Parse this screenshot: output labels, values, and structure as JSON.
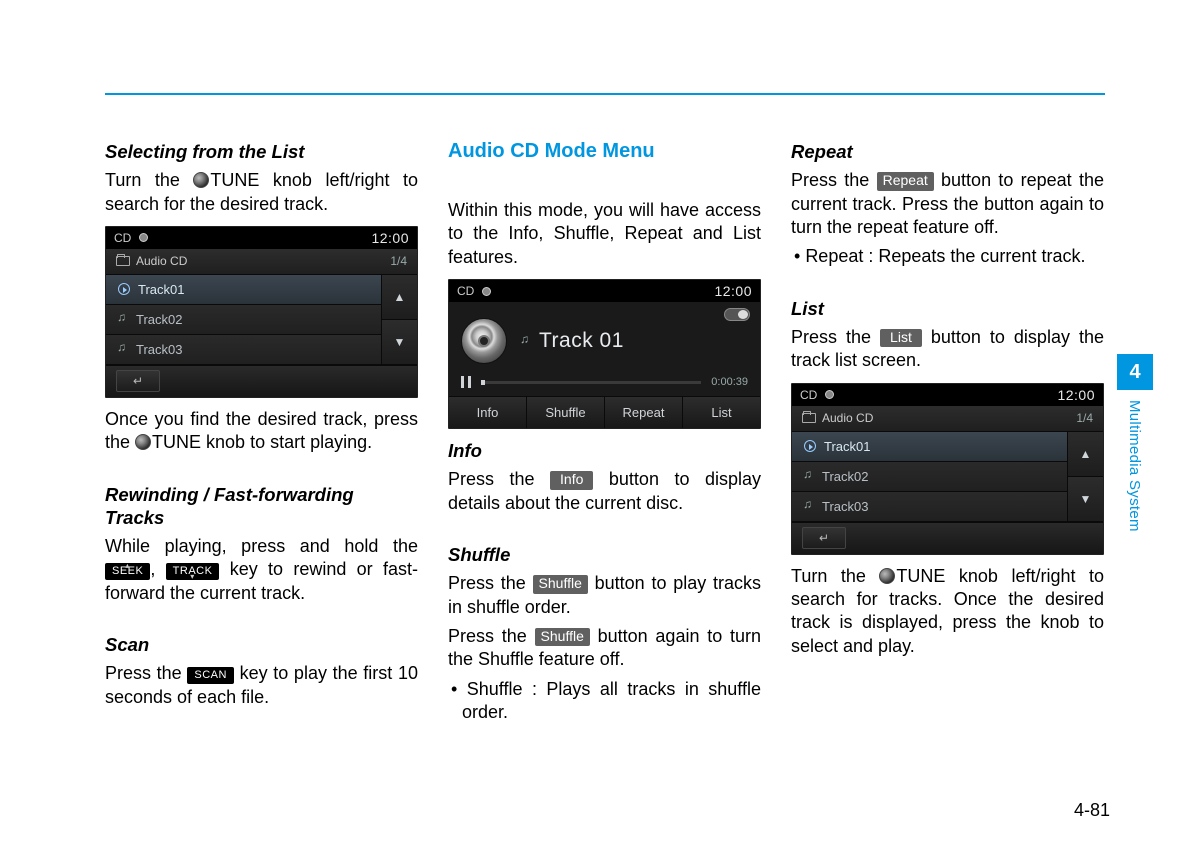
{
  "page": {
    "number": "4-81",
    "chapter_num": "4",
    "chapter_title": "Multimedia System"
  },
  "col1": {
    "h1": "Selecting from the List",
    "p1a": "Turn the ",
    "p1b": "TUNE knob left/right to search for the desired track.",
    "p2a": "Once you find the desired track, press the ",
    "p2b": "TUNE knob to start playing.",
    "h2": "Rewinding / Fast-forwarding Tracks",
    "p3a": "While playing, press and hold the ",
    "seek": "SEEK",
    "p3b": ", ",
    "track": "TRACK",
    "p3c": " key to rewind or fast-forward the current track.",
    "h3": "Scan",
    "p4a": "Press the ",
    "scan": "SCAN",
    "p4b": " key to play the first 10 seconds of each file."
  },
  "col2": {
    "hmain": "Audio CD Mode Menu",
    "p1": "Within this mode, you will have access to the Info, Shuffle, Repeat and List features.",
    "h_info": "Info",
    "p_info_a": "Press the ",
    "chip_info": "Info",
    "p_info_b": " button to display details about the current disc.",
    "h_shuffle": "Shuffle",
    "p_sh1_a": "Press the ",
    "chip_shuffle": "Shuffle",
    "p_sh1_b": " button to play tracks in shuffle order.",
    "p_sh2_a": "Press the ",
    "p_sh2_b": " button again to turn the Shuffle feature off.",
    "bullet_shuffle": "Shuffle : Plays all tracks in shuffle order."
  },
  "col3": {
    "h_repeat": "Repeat",
    "p_rp_a": "Press the ",
    "chip_repeat": "Repeat",
    "p_rp_b": " button to repeat the current track. Press the button again to turn the repeat feature off.",
    "bullet_repeat": "Repeat : Repeats the current track.",
    "h_list": "List",
    "p_ls_a": "Press the ",
    "chip_list": "List",
    "p_ls_b": " button to display the track list screen.",
    "p_end_a": "Turn the ",
    "p_end_b": "TUNE knob left/right to search for tracks. Once the desired track is displayed, press the knob to select and play."
  },
  "screens": {
    "clock": "12:00",
    "source": "CD",
    "list": {
      "folder": "Audio CD",
      "count": "1/4",
      "rows": [
        "Track01",
        "Track02",
        "Track03"
      ]
    },
    "player": {
      "title": "Track 01",
      "elapsed": "0:00:39",
      "buttons": [
        "Info",
        "Shuffle",
        "Repeat",
        "List"
      ]
    }
  }
}
